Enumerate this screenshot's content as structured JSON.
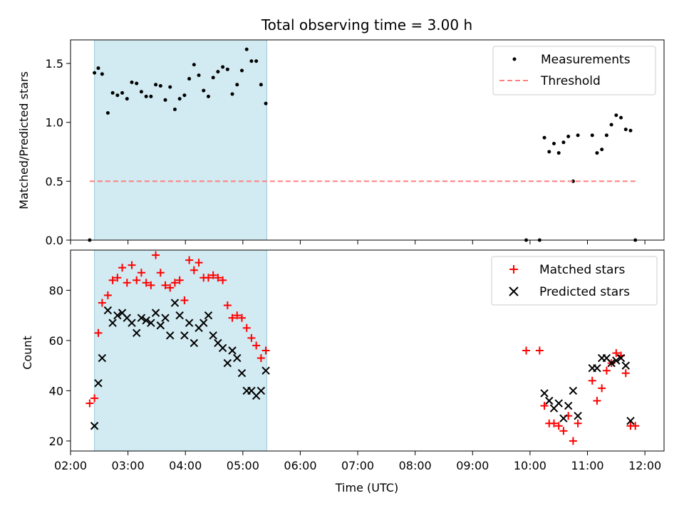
{
  "chart_data": [
    {
      "type": "scatter",
      "title": "Total observing time = 3.00 h",
      "xlabel": "",
      "ylabel": "Matched/Predicted stars",
      "xlim": [
        "02:00",
        "12:20"
      ],
      "ylim": [
        0,
        1.7
      ],
      "yticks": [
        0.0,
        0.5,
        1.0,
        1.5
      ],
      "ytick_labels": [
        "0.0",
        "0.5",
        "1.0",
        "1.5"
      ],
      "grid": false,
      "legend": "top-right",
      "highlight_band": {
        "x0": "02:25",
        "x1": "05:25",
        "color": "#add8e6"
      },
      "series": [
        {
          "name": "Measurements",
          "kind": "points",
          "color": "#000000",
          "x": [
            "02:20",
            "02:25",
            "02:29",
            "02:33",
            "02:39",
            "02:44",
            "02:49",
            "02:54",
            "02:59",
            "03:04",
            "03:09",
            "03:14",
            "03:19",
            "03:24",
            "03:29",
            "03:34",
            "03:39",
            "03:44",
            "03:49",
            "03:54",
            "03:59",
            "04:04",
            "04:09",
            "04:14",
            "04:19",
            "04:24",
            "04:29",
            "04:34",
            "04:39",
            "04:44",
            "04:49",
            "04:54",
            "04:59",
            "05:04",
            "05:09",
            "05:14",
            "05:19",
            "05:24",
            "09:56",
            "10:10",
            "10:15",
            "10:20",
            "10:25",
            "10:30",
            "10:35",
            "10:40",
            "10:45",
            "10:50",
            "11:05",
            "11:10",
            "11:15",
            "11:20",
            "11:25",
            "11:30",
            "11:35",
            "11:40",
            "11:45",
            "11:50"
          ],
          "y": [
            0.0,
            1.42,
            1.46,
            1.41,
            1.08,
            1.25,
            1.23,
            1.25,
            1.2,
            1.34,
            1.33,
            1.26,
            1.22,
            1.22,
            1.32,
            1.31,
            1.19,
            1.3,
            1.11,
            1.2,
            1.23,
            1.37,
            1.49,
            1.4,
            1.27,
            1.22,
            1.38,
            1.43,
            1.47,
            1.45,
            1.24,
            1.32,
            1.44,
            1.62,
            1.52,
            1.52,
            1.32,
            1.16,
            0.0,
            0.0,
            0.87,
            0.75,
            0.82,
            0.74,
            0.83,
            0.88,
            0.5,
            0.89,
            0.89,
            0.74,
            0.77,
            0.89,
            0.98,
            1.06,
            1.04,
            0.94,
            0.93,
            0.0
          ]
        },
        {
          "name": "Threshold",
          "kind": "dashed-line",
          "color": "#ff7f7f",
          "x": [
            "02:20",
            "11:50"
          ],
          "y": [
            0.5,
            0.5
          ]
        }
      ]
    },
    {
      "type": "scatter",
      "title": "",
      "xlabel": "Time (UTC)",
      "ylabel": "Count",
      "xlim": [
        "02:00",
        "12:20"
      ],
      "ylim": [
        16,
        96
      ],
      "xticks": [
        "02:00",
        "03:00",
        "04:00",
        "05:00",
        "06:00",
        "07:00",
        "08:00",
        "09:00",
        "10:00",
        "11:00",
        "12:00"
      ],
      "yticks": [
        20,
        40,
        60,
        80
      ],
      "ytick_labels": [
        "20",
        "40",
        "60",
        "80"
      ],
      "grid": false,
      "legend": "top-right",
      "highlight_band": {
        "x0": "02:25",
        "x1": "05:25",
        "color": "#add8e6"
      },
      "series": [
        {
          "name": "Matched stars",
          "marker": "plus",
          "color": "#ff0000",
          "x": [
            "02:20",
            "02:25",
            "02:29",
            "02:33",
            "02:39",
            "02:44",
            "02:49",
            "02:54",
            "02:59",
            "03:04",
            "03:09",
            "03:14",
            "03:19",
            "03:24",
            "03:29",
            "03:34",
            "03:39",
            "03:44",
            "03:49",
            "03:54",
            "03:59",
            "04:04",
            "04:09",
            "04:14",
            "04:19",
            "04:24",
            "04:29",
            "04:34",
            "04:39",
            "04:44",
            "04:49",
            "04:54",
            "04:59",
            "05:04",
            "05:09",
            "05:14",
            "05:19",
            "05:24",
            "09:56",
            "10:10",
            "10:15",
            "10:20",
            "10:25",
            "10:30",
            "10:35",
            "10:40",
            "10:45",
            "10:50",
            "11:05",
            "11:10",
            "11:15",
            "11:20",
            "11:25",
            "11:30",
            "11:35",
            "11:40",
            "11:45",
            "11:50"
          ],
          "y": [
            35,
            37,
            63,
            75,
            78,
            84,
            85,
            89,
            83,
            90,
            84,
            87,
            83,
            82,
            94,
            87,
            82,
            81,
            83,
            84,
            76,
            92,
            88,
            91,
            85,
            85,
            86,
            85,
            84,
            74,
            69,
            70,
            69,
            65,
            61,
            58,
            53,
            56,
            56,
            56,
            34,
            27,
            27,
            26,
            24,
            30,
            20,
            27,
            44,
            36,
            41,
            48,
            51,
            55,
            54,
            47,
            26,
            26
          ]
        },
        {
          "name": "Predicted stars",
          "marker": "x",
          "color": "#000000",
          "x": [
            "02:25",
            "02:29",
            "02:33",
            "02:39",
            "02:44",
            "02:49",
            "02:54",
            "02:59",
            "03:04",
            "03:09",
            "03:14",
            "03:19",
            "03:24",
            "03:29",
            "03:34",
            "03:39",
            "03:44",
            "03:49",
            "03:54",
            "03:59",
            "04:04",
            "04:09",
            "04:14",
            "04:19",
            "04:24",
            "04:29",
            "04:34",
            "04:39",
            "04:44",
            "04:49",
            "04:54",
            "04:59",
            "05:04",
            "05:09",
            "05:14",
            "05:19",
            "05:24",
            "10:15",
            "10:20",
            "10:25",
            "10:30",
            "10:35",
            "10:40",
            "10:45",
            "10:50",
            "11:05",
            "11:10",
            "11:15",
            "11:20",
            "11:25",
            "11:30",
            "11:35",
            "11:40",
            "11:45"
          ],
          "y": [
            26,
            43,
            53,
            72,
            67,
            70,
            71,
            69,
            67,
            63,
            69,
            68,
            67,
            71,
            66,
            69,
            62,
            75,
            70,
            62,
            67,
            59,
            65,
            67,
            70,
            62,
            59,
            57,
            51,
            56,
            53,
            47,
            40,
            40,
            38,
            40,
            48,
            39,
            36,
            33,
            35,
            29,
            34,
            40,
            30,
            49,
            49,
            53,
            53,
            51,
            52,
            53,
            50,
            28
          ]
        }
      ]
    }
  ]
}
